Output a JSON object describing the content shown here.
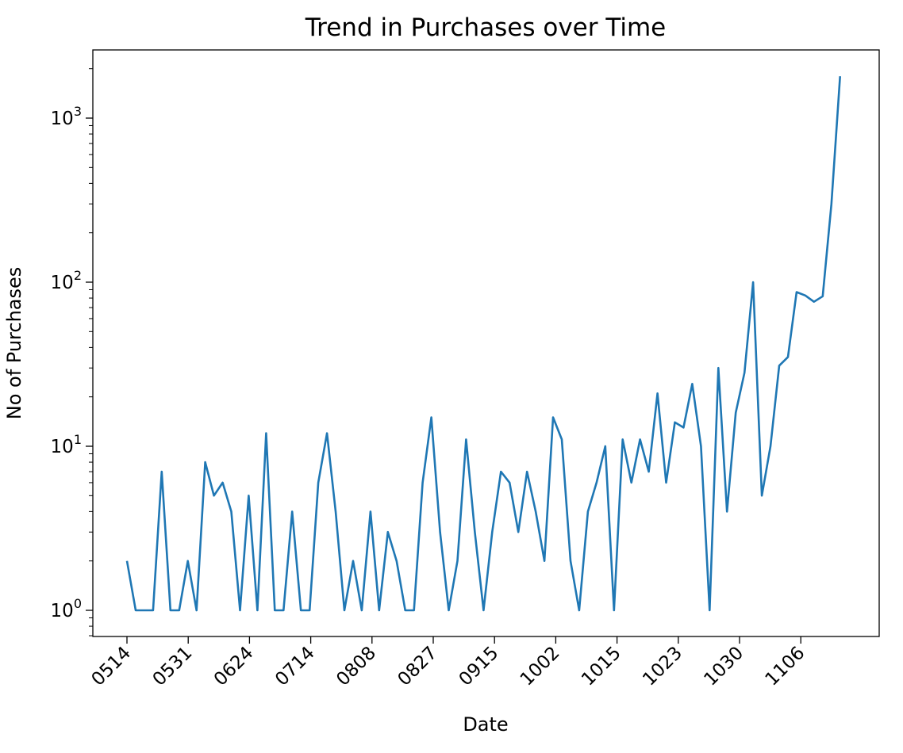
{
  "chart_data": {
    "type": "line",
    "title": "Trend in Purchases over Time",
    "xlabel": "Date",
    "ylabel": "No of Purchases",
    "y_scale": "log",
    "ylim": [
      0.7,
      2600
    ],
    "grid": false,
    "x_tick_labels": [
      "0514",
      "0531",
      "0624",
      "0714",
      "0808",
      "0827",
      "0915",
      "1002",
      "1015",
      "1023",
      "1030",
      "1106"
    ],
    "y_tick_labels": [
      {
        "base": "10",
        "exp": "0",
        "value": 1
      },
      {
        "base": "10",
        "exp": "1",
        "value": 10
      },
      {
        "base": "10",
        "exp": "2",
        "value": 100
      },
      {
        "base": "10",
        "exp": "3",
        "value": 1000
      }
    ],
    "series": [
      {
        "color": "#1f77b4",
        "values": [
          2,
          1,
          1,
          1,
          7,
          1,
          1,
          2,
          1,
          8,
          5,
          6,
          4,
          1,
          5,
          1,
          12,
          1,
          1,
          4,
          1,
          1,
          6,
          12,
          4,
          1,
          2,
          1,
          4,
          1,
          3,
          2,
          1,
          1,
          6,
          15,
          3,
          1,
          2,
          11,
          3,
          1,
          3,
          7,
          6,
          3,
          7,
          4,
          2,
          15,
          11,
          2,
          1,
          4,
          6,
          10,
          1,
          11,
          6,
          11,
          7,
          21,
          6,
          14,
          13,
          24,
          10,
          1,
          30,
          4,
          16,
          28,
          100,
          5,
          10,
          31,
          35,
          87,
          83,
          76,
          82,
          300,
          1800
        ]
      }
    ]
  }
}
